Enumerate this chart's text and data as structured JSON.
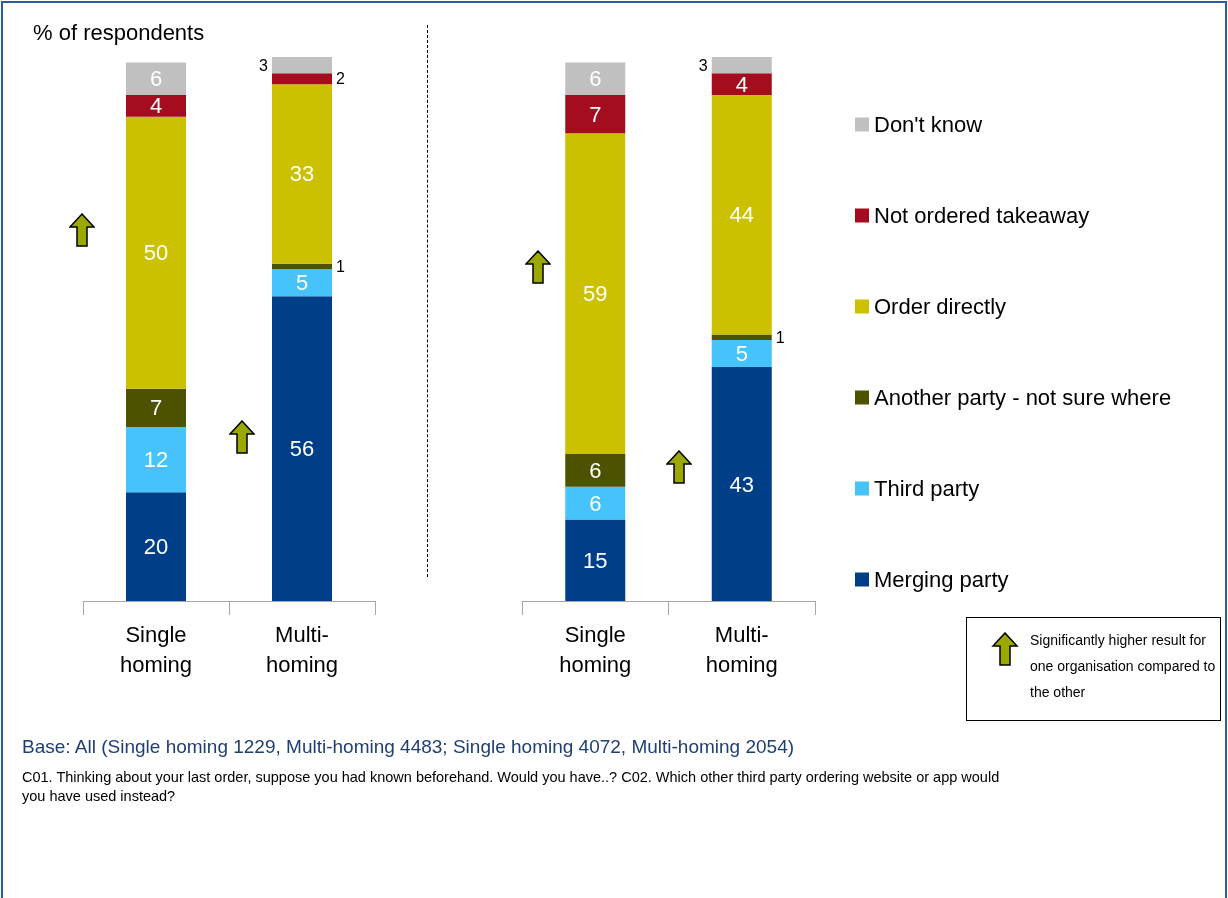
{
  "chart_data": [
    {
      "type": "bar",
      "stacked": true,
      "ylabel": "% of respondents",
      "categories": [
        "Single homing",
        "Multi-homing"
      ],
      "ylim": [
        0,
        100
      ],
      "tick_labels": "x",
      "data_labels": true,
      "legend": false,
      "series": [
        {
          "color": "#003f87",
          "values": [
            20,
            56
          ]
        },
        {
          "color": "#45c3fa",
          "values": [
            12,
            5
          ]
        },
        {
          "color": "#4d5200",
          "values": [
            7,
            1
          ]
        },
        {
          "color": "#ccc100",
          "values": [
            50,
            33
          ]
        },
        {
          "color": "#a30d1e",
          "values": [
            4,
            2
          ]
        },
        {
          "color": "#c0c0c0",
          "values": [
            6,
            3
          ]
        }
      ]
    },
    {
      "type": "bar",
      "stacked": true,
      "categories": [
        "Single homing",
        "Multi-homing"
      ],
      "ylim": [
        0,
        100
      ],
      "tick_labels": "x",
      "data_labels": true,
      "legend": "right",
      "series": [
        {
          "name": "Merging party",
          "color": "#003f87",
          "values": [
            15,
            43
          ]
        },
        {
          "name": "Third party",
          "color": "#45c3fa",
          "values": [
            6,
            5
          ]
        },
        {
          "name": "Another party - not sure where",
          "color": "#4d5200",
          "values": [
            6,
            1
          ]
        },
        {
          "name": "Order directly",
          "color": "#ccc100",
          "values": [
            59,
            44
          ]
        },
        {
          "name": "Not ordered takeaway",
          "color": "#a30d1e",
          "values": [
            7,
            4
          ]
        },
        {
          "name": "Don't know",
          "color": "#c0c0c0",
          "values": [
            6,
            3
          ]
        }
      ],
      "annotations": [
        "Significantly higher result for one organisation compared to the other",
        "Base: All (Single homing 1229, Multi-homing 4483; Single homing 4072, Multi-homing 2054)",
        "C01. Thinking about your last order, suppose you had known beforehand. Would you have..? C02. Which other third party ordering website or app would you have used instead?"
      ]
    }
  ]
}
